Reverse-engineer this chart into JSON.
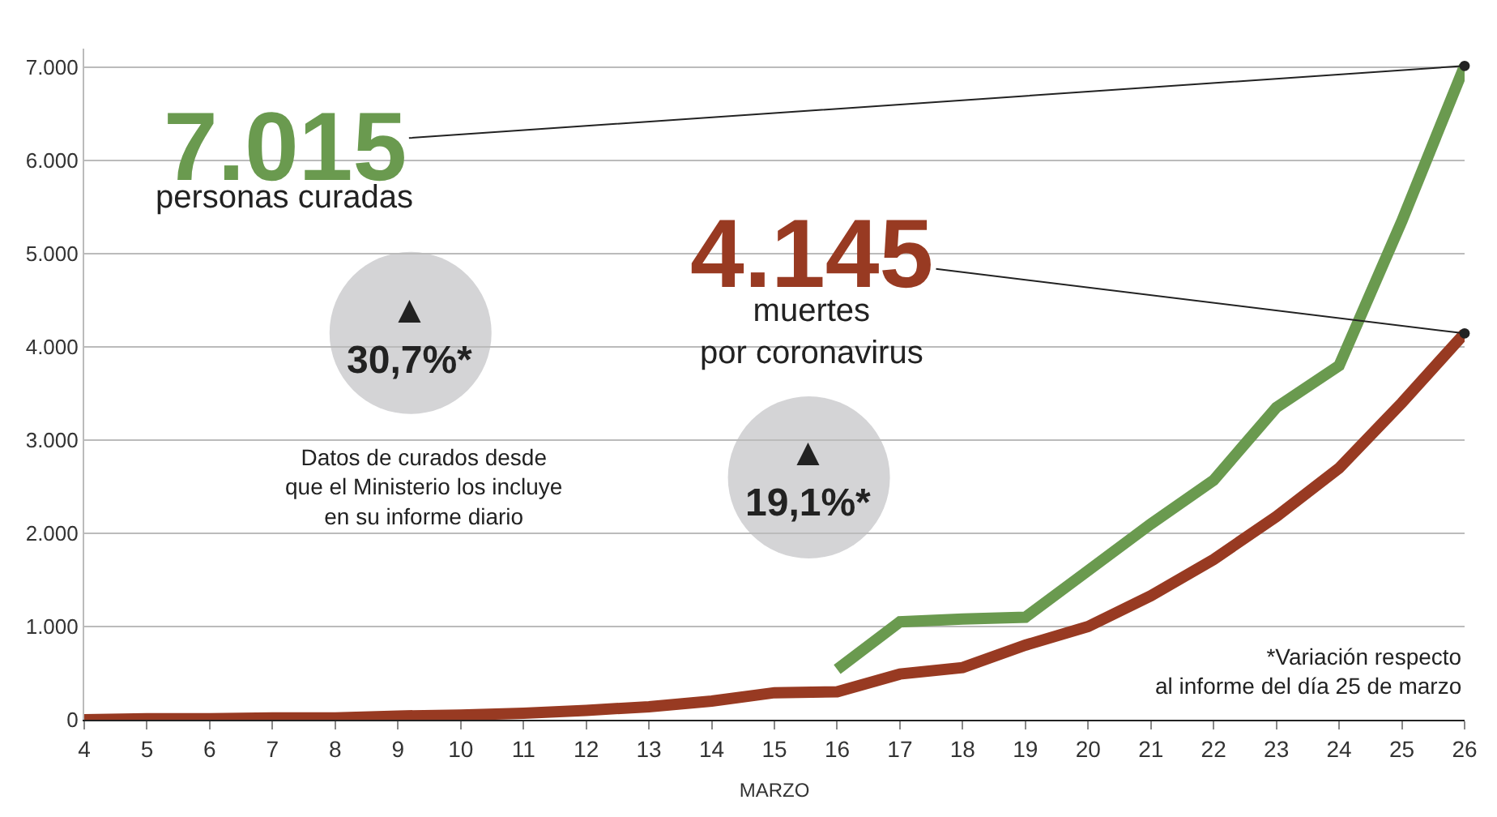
{
  "chart_data": {
    "type": "line",
    "xlabel": "MARZO",
    "x": [
      4,
      5,
      6,
      7,
      8,
      9,
      10,
      11,
      12,
      13,
      14,
      15,
      16,
      17,
      18,
      19,
      20,
      21,
      22,
      23,
      24,
      25,
      26
    ],
    "series": [
      {
        "color": "#6a9a4f",
        "values": [
          null,
          null,
          null,
          null,
          null,
          null,
          null,
          null,
          null,
          null,
          null,
          null,
          540,
          1050,
          1080,
          1100,
          1600,
          2100,
          2570,
          3350,
          3800,
          5350,
          7015
        ]
      },
      {
        "color": "#983a22",
        "values": [
          0,
          10,
          10,
          20,
          20,
          40,
          50,
          70,
          100,
          140,
          200,
          290,
          300,
          490,
          560,
          800,
          1000,
          1330,
          1720,
          2180,
          2700,
          3400,
          4145
        ]
      }
    ],
    "xlim": [
      4,
      26
    ],
    "xticks": [
      4,
      5,
      6,
      7,
      8,
      9,
      10,
      11,
      12,
      13,
      14,
      15,
      16,
      17,
      18,
      19,
      20,
      21,
      22,
      23,
      24,
      25,
      26
    ],
    "ylim": [
      0,
      7200
    ],
    "yticks": [
      0,
      {
        "value": 1000,
        "label": "1.000"
      },
      {
        "value": 2000,
        "label": "2.000"
      },
      {
        "value": 3000,
        "label": "3.000"
      },
      {
        "value": 4000,
        "label": "4.000"
      },
      {
        "value": 5000,
        "label": "5.000"
      },
      {
        "value": 6000,
        "label": "6.000"
      },
      {
        "value": 7000,
        "label": "7.000"
      }
    ],
    "grid": "y",
    "legend": false,
    "line_style": "solid",
    "annotations": [
      {
        "text": "7.015",
        "x": 26,
        "y": 7015
      },
      "personas curadas",
      {
        "text": "4.145",
        "x": 26,
        "y": 4145
      },
      "muertes\npor coronavirus",
      "▲\n30,7%*",
      "▲\n19,1%*",
      "Datos de curados desde\nque el Ministerio los incluye\nen su informe diario",
      "*Variación respecto\nal informe del día 25 de marzo"
    ]
  }
}
